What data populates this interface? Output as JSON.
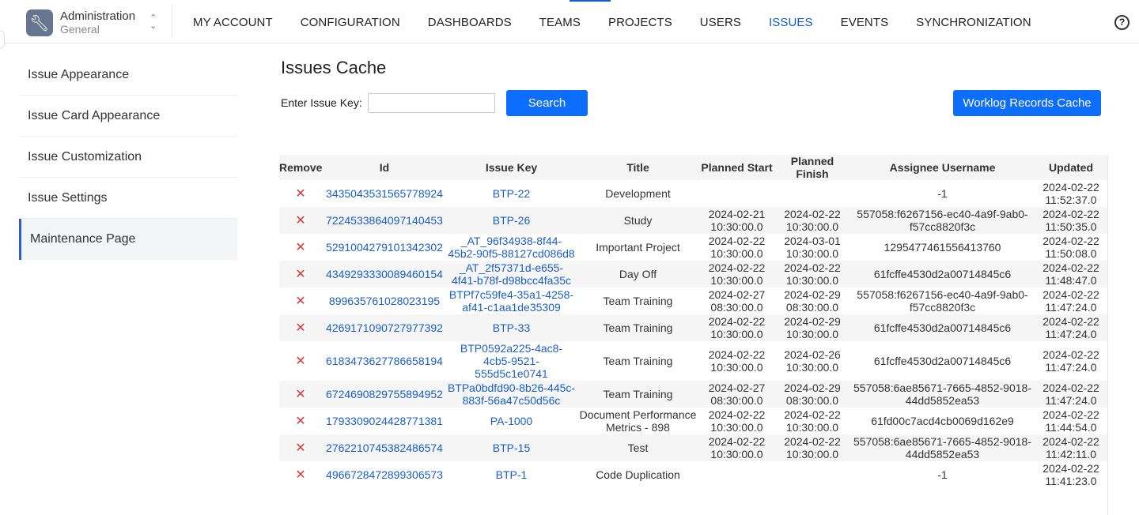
{
  "header": {
    "app_title": "Administration",
    "app_subtitle": "General",
    "nav": [
      "MY ACCOUNT",
      "CONFIGURATION",
      "DASHBOARDS",
      "TEAMS",
      "PROJECTS",
      "USERS",
      "ISSUES",
      "EVENTS",
      "SYNCHRONIZATION"
    ],
    "active_nav": "ISSUES",
    "help_label": "?"
  },
  "sidebar": {
    "items": [
      "Issue Appearance",
      "Issue Card Appearance",
      "Issue Customization",
      "Issue Settings",
      "Maintenance Page"
    ],
    "active": "Maintenance Page"
  },
  "main": {
    "title": "Issues Cache",
    "input_label": "Enter Issue Key:",
    "input_value": "",
    "search_label": "Search",
    "worklog_label": "Worklog Records Cache"
  },
  "table": {
    "remove_glyph": "✕",
    "columns": [
      "Remove",
      "Id",
      "Issue Key",
      "Title",
      "Planned Start",
      "Planned Finish",
      "Assignee Username",
      "Updated"
    ],
    "rows": [
      {
        "id": "3435043531565778924",
        "key": "BTP-22",
        "title": "Development",
        "start": "",
        "finish": "",
        "assignee": "-1",
        "updated": "2024-02-22 11:52:37.0"
      },
      {
        "id": "7224533864097140453",
        "key": "BTP-26",
        "title": "Study",
        "start": "2024-02-21 10:30:00.0",
        "finish": "2024-02-22 10:30:00.0",
        "assignee": "557058:f6267156-ec40-4a9f-9ab0-f57cc8820f3c",
        "updated": "2024-02-22 11:50:35.0"
      },
      {
        "id": "5291004279101342302",
        "key": "_AT_96f34938-8f44-45b2-90f5-88127cd086d8",
        "title": "Important Project",
        "start": "2024-02-22 10:30:00.0",
        "finish": "2024-03-01 10:30:00.0",
        "assignee": "1295477461556413760",
        "updated": "2024-02-22 11:50:08.0"
      },
      {
        "id": "4349293330089460154",
        "key": "_AT_2f57371d-e655-4f41-b78f-d98bcc4fa35c",
        "title": "Day Off",
        "start": "2024-02-22 10:30:00.0",
        "finish": "2024-02-22 10:30:00.0",
        "assignee": "61fcffe4530d2a00714845c6",
        "updated": "2024-02-22 11:48:47.0"
      },
      {
        "id": "899635761028023195",
        "key": "BTPf7c59fe4-35a1-4258-af41-c1aa1de35309",
        "title": "Team Training",
        "start": "2024-02-27 08:30:00.0",
        "finish": "2024-02-29 08:30:00.0",
        "assignee": "557058:f6267156-ec40-4a9f-9ab0-f57cc8820f3c",
        "updated": "2024-02-22 11:47:24.0"
      },
      {
        "id": "4269171090727977392",
        "key": "BTP-33",
        "title": "Team Training",
        "start": "2024-02-22 10:30:00.0",
        "finish": "2024-02-29 10:30:00.0",
        "assignee": "61fcffe4530d2a00714845c6",
        "updated": "2024-02-22 11:47:24.0"
      },
      {
        "id": "6183473627786658194",
        "key": "BTP0592a225-4ac8-4cb5-9521-555d5c1e0741",
        "title": "Team Training",
        "start": "2024-02-22 10:30:00.0",
        "finish": "2024-02-26 10:30:00.0",
        "assignee": "61fcffe4530d2a00714845c6",
        "updated": "2024-02-22 11:47:24.0"
      },
      {
        "id": "6724690829755894952",
        "key": "BTPa0bdfd90-8b26-445c-883f-56a47c50d56c",
        "title": "Team Training",
        "start": "2024-02-27 08:30:00.0",
        "finish": "2024-02-29 08:30:00.0",
        "assignee": "557058:6ae85671-7665-4852-9018-44dd5852ea53",
        "updated": "2024-02-22 11:47:24.0"
      },
      {
        "id": "1793309024428771381",
        "key": "PA-1000",
        "title": "Document Performance Metrics - 898",
        "start": "2024-02-22 10:30:00.0",
        "finish": "2024-02-22 10:30:00.0",
        "assignee": "61fd00c7acd4cb0069d162e9",
        "updated": "2024-02-22 11:44:54.0"
      },
      {
        "id": "2762210745382486574",
        "key": "BTP-15",
        "title": "Test",
        "start": "2024-02-22 10:30:00.0",
        "finish": "2024-02-22 10:30:00.0",
        "assignee": "557058:6ae85671-7665-4852-9018-44dd5852ea53",
        "updated": "2024-02-22 11:42:11.0"
      },
      {
        "id": "4966728472899306573",
        "key": "BTP-1",
        "title": "Code Duplication",
        "start": "",
        "finish": "",
        "assignee": "-1",
        "updated": "2024-02-22 11:41:23.0"
      }
    ]
  },
  "colors": {
    "accent": "#0d6efd",
    "link": "#1a5fc7",
    "remove": "#d83a3a"
  }
}
